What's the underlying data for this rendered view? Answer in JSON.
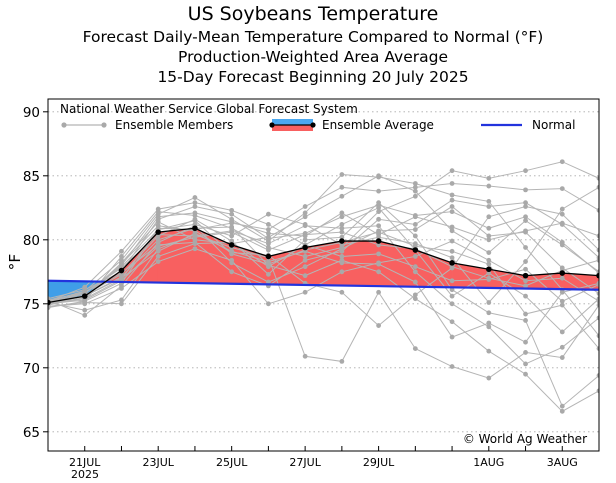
{
  "chart_data": {
    "type": "line",
    "title": "US Soybeans Temperature",
    "subtitle_lines": [
      "Forecast Daily-Mean Temperature Compared to Normal (°F)",
      "Production-Weighted Area Average",
      "15-Day Forecast Beginning 20 July 2025"
    ],
    "ylabel": "°F",
    "ylim": [
      63.5,
      91
    ],
    "yticks": [
      "65",
      "70",
      "75",
      "80",
      "85",
      "90"
    ],
    "xlim": [
      0,
      15
    ],
    "x_ticks": [
      {
        "x": 1,
        "label": "21JUL"
      },
      {
        "x": 3,
        "label": "23JUL"
      },
      {
        "x": 5,
        "label": "25JUL"
      },
      {
        "x": 7,
        "label": "27JUL"
      },
      {
        "x": 9,
        "label": "29JUL"
      },
      {
        "x": 12,
        "label": "1AUG"
      },
      {
        "x": 14,
        "label": "3AUG"
      }
    ],
    "x_year_label": "2025",
    "legend": {
      "header": "National Weather Service Global Forecast System",
      "members_label": "Ensemble Members",
      "average_label": "Ensemble Average",
      "normal_label": "Normal"
    },
    "copyright": "© World Ag Weather",
    "series": [
      {
        "name": "Ensemble Average",
        "x": [
          0,
          1,
          2,
          3,
          4,
          5,
          6,
          7,
          8,
          9,
          10,
          11,
          12,
          13,
          14,
          15
        ],
        "values": [
          75.1,
          75.6,
          77.6,
          80.6,
          80.9,
          79.6,
          78.7,
          79.4,
          79.9,
          79.9,
          79.2,
          78.2,
          77.7,
          77.2,
          77.4,
          77.2
        ]
      },
      {
        "name": "Normal",
        "x": [
          0,
          15
        ],
        "values": [
          76.8,
          76.1
        ]
      }
    ],
    "members": [
      [
        75.0,
        75.3,
        76.8,
        79.5,
        80.2,
        80.6,
        79.2,
        80.4,
        80.6,
        79.6,
        79.3,
        77.9,
        77.0,
        76.4,
        77.6,
        78.4
      ],
      [
        75.2,
        75.8,
        77.9,
        80.8,
        81.5,
        78.9,
        78.1,
        79.2,
        79.8,
        80.6,
        79.5,
        79.1,
        78.1,
        74.2,
        74.9,
        71.5
      ],
      [
        74.9,
        75.5,
        78.2,
        81.4,
        80.0,
        79.7,
        80.2,
        81.8,
        83.4,
        85.0,
        83.8,
        80.7,
        79.0,
        81.5,
        79.6,
        77.5
      ],
      [
        75.3,
        75.9,
        77.4,
        79.6,
        79.8,
        77.5,
        76.4,
        78.4,
        79.1,
        81.6,
        81.2,
        83.1,
        82.6,
        82.9,
        81.2,
        78.6
      ],
      [
        75.0,
        75.6,
        77.1,
        80.0,
        80.9,
        81.0,
        78.0,
        77.2,
        78.4,
        77.5,
        75.4,
        73.6,
        71.3,
        69.5,
        66.6,
        68.2
      ],
      [
        75.1,
        74.5,
        75.3,
        79.3,
        80.4,
        79.4,
        78.6,
        70.9,
        70.5,
        75.9,
        71.5,
        70.1,
        69.2,
        71.2,
        70.8,
        74.9
      ],
      [
        74.7,
        75.2,
        78.7,
        82.2,
        81.9,
        80.9,
        79.4,
        78.7,
        79.4,
        82.2,
        83.4,
        85.4,
        84.8,
        85.4,
        86.1,
        84.8
      ],
      [
        75.4,
        76.1,
        77.5,
        81.6,
        82.6,
        82.0,
        80.1,
        80.5,
        81.8,
        82.7,
        81.9,
        82.2,
        80.9,
        81.8,
        79.8,
        77.4
      ],
      [
        74.8,
        75.0,
        76.2,
        78.3,
        79.3,
        78.4,
        75.0,
        75.9,
        77.5,
        78.2,
        78.7,
        79.9,
        78.4,
        76.8,
        77.0,
        75.2
      ],
      [
        75.2,
        76.0,
        78.4,
        82.0,
        83.3,
        81.6,
        79.9,
        82.1,
        85.1,
        84.9,
        84.4,
        83.5,
        83.0,
        79.4,
        76.1,
        72.5
      ],
      [
        75.1,
        75.4,
        78.1,
        81.1,
        80.7,
        79.0,
        78.8,
        76.6,
        75.9,
        73.3,
        75.7,
        77.8,
        81.8,
        82.6,
        82.0,
        79.2
      ],
      [
        74.9,
        75.7,
        77.3,
        80.3,
        81.6,
        79.9,
        77.3,
        80.0,
        80.2,
        82.9,
        80.3,
        76.1,
        74.3,
        73.7,
        67.0,
        69.4
      ],
      [
        75.3,
        75.2,
        76.6,
        80.8,
        81.2,
        80.3,
        82.0,
        81.2,
        79.6,
        80.2,
        79.7,
        78.6,
        75.1,
        78.3,
        82.4,
        84.1
      ],
      [
        75.0,
        75.8,
        78.0,
        81.8,
        82.1,
        81.4,
        80.5,
        80.3,
        82.1,
        80.4,
        81.8,
        81.0,
        80.0,
        80.7,
        81.3,
        80.3
      ],
      [
        75.2,
        76.3,
        79.1,
        82.4,
        82.9,
        82.3,
        81.2,
        79.6,
        78.7,
        78.9,
        77.9,
        76.8,
        76.9,
        77.7,
        75.2,
        76.5
      ],
      [
        74.8,
        75.1,
        75.0,
        78.7,
        79.7,
        79.8,
        77.9,
        79.6,
        81.2,
        82.5,
        79.2,
        75.6,
        77.4,
        75.6,
        72.8,
        75.4
      ],
      [
        75.1,
        75.9,
        77.8,
        80.4,
        80.3,
        80.7,
        79.7,
        81.1,
        80.9,
        81.1,
        77.5,
        75.0,
        73.2,
        70.3,
        71.6,
        73.9
      ],
      [
        75.0,
        75.4,
        76.9,
        80.9,
        80.8,
        81.3,
        80.8,
        82.6,
        84.1,
        83.8,
        84.1,
        84.4,
        84.2,
        83.9,
        84.0,
        82.3
      ],
      [
        75.2,
        75.6,
        77.0,
        79.1,
        80.5,
        79.1,
        78.3,
        79.1,
        78.2,
        78.1,
        76.7,
        72.4,
        73.5,
        72.0,
        75.9,
        76.6
      ],
      [
        75.3,
        74.1,
        76.4,
        79.8,
        81.1,
        78.2,
        76.7,
        77.9,
        79.3,
        80.7,
        80.8,
        82.6,
        80.3,
        80.6,
        77.8,
        75.8
      ]
    ],
    "colors": {
      "members": "#b5b5b5",
      "members_dot": "#a9a9a9",
      "above_fill": "#f86060",
      "below_fill": "#3f9ee8",
      "legend_bar_above": "#f86060",
      "legend_bar_below": "#4aa8f0",
      "normal": "#2233dd",
      "average": "#000000",
      "grid": "#aaaaaa"
    }
  }
}
